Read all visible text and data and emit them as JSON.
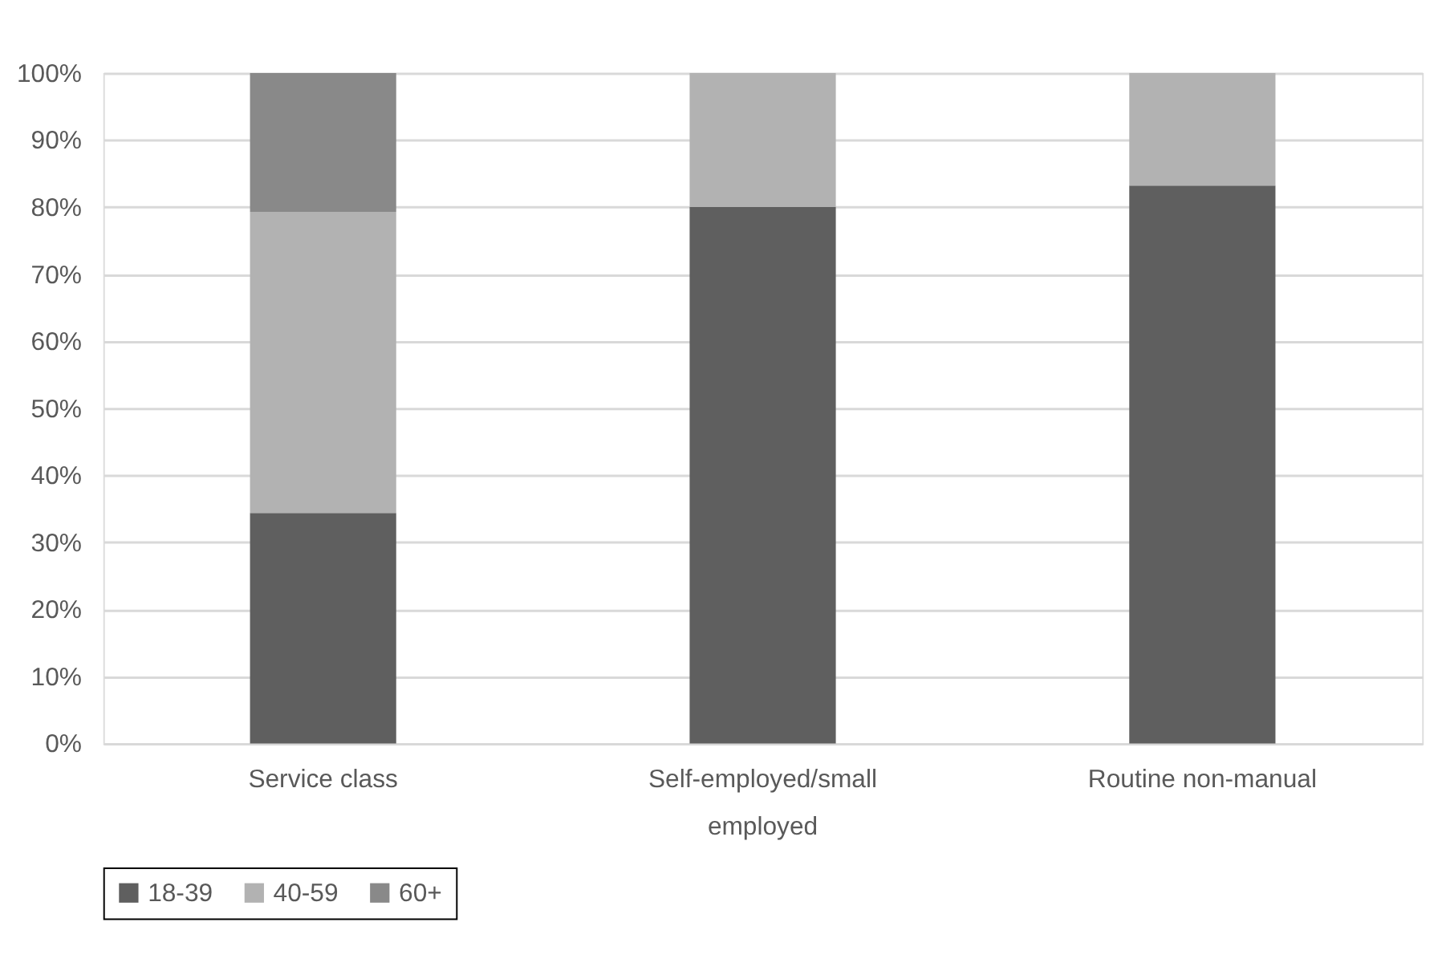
{
  "chart_data": {
    "type": "bar",
    "stacked": true,
    "categories": [
      "Service class",
      "Self-employed/small employed",
      "Routine non-manual"
    ],
    "series": [
      {
        "name": "18-39",
        "color": "#5f5f5f",
        "values": [
          34.4,
          80,
          83.2
        ]
      },
      {
        "name": "40-59",
        "color": "#b2b2b2",
        "values": [
          44.9,
          20,
          16.8
        ]
      },
      {
        "name": "60+",
        "color": "#898989",
        "values": [
          20.7,
          null,
          null
        ]
      }
    ],
    "ylim": [
      0,
      100
    ],
    "yticks": [
      {
        "value": 0,
        "label": "0%"
      },
      {
        "value": 10,
        "label": "10%"
      },
      {
        "value": 20,
        "label": "20%"
      },
      {
        "value": 30,
        "label": "30%"
      },
      {
        "value": 40,
        "label": "40%"
      },
      {
        "value": 50,
        "label": "50%"
      },
      {
        "value": 60,
        "label": "60%"
      },
      {
        "value": 70,
        "label": "70%"
      },
      {
        "value": 80,
        "label": "80%"
      },
      {
        "value": 90,
        "label": "90%"
      },
      {
        "value": 100,
        "label": "100%"
      }
    ],
    "grid": "y",
    "legend": "bottom"
  }
}
